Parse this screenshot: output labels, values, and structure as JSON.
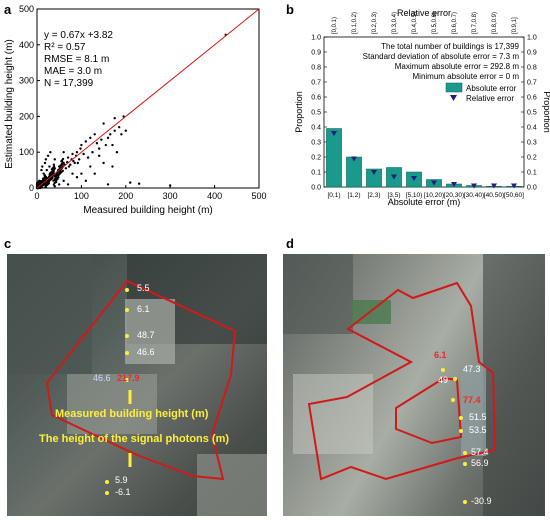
{
  "panels": {
    "a": "a",
    "b": "b",
    "c": "c",
    "d": "d"
  },
  "chart_data": [
    {
      "type": "scatter",
      "xlabel": "Measured building height (m)",
      "ylabel": "Estimated building height (m)",
      "xlim": [
        0,
        500
      ],
      "ylim": [
        0,
        500
      ],
      "xticks": [
        0,
        100,
        200,
        300,
        400,
        500
      ],
      "yticks": [
        0,
        100,
        200,
        300,
        400,
        500
      ],
      "stats": [
        "y = 0.67x +3.82",
        "R² = 0.57",
        "RMSE = 8.1 m",
        "MAE = 3.0 m",
        "N = 17,399"
      ],
      "fit_line": {
        "slope": 0.67,
        "intercept": 3.82
      },
      "identity_line": true,
      "points": [
        [
          425,
          428
        ],
        [
          300,
          7
        ],
        [
          195,
          200
        ],
        [
          175,
          195
        ],
        [
          230,
          12
        ],
        [
          160,
          10
        ],
        [
          210,
          15
        ],
        [
          150,
          180
        ],
        [
          170,
          120
        ],
        [
          190,
          150
        ],
        [
          120,
          140
        ],
        [
          130,
          150
        ],
        [
          140,
          110
        ],
        [
          100,
          120
        ],
        [
          110,
          130
        ],
        [
          90,
          100
        ],
        [
          80,
          95
        ],
        [
          85,
          70
        ],
        [
          70,
          85
        ],
        [
          60,
          70
        ],
        [
          50,
          60
        ],
        [
          45,
          40
        ],
        [
          40,
          55
        ],
        [
          35,
          30
        ],
        [
          30,
          40
        ],
        [
          25,
          22
        ],
        [
          20,
          30
        ],
        [
          15,
          18
        ],
        [
          10,
          15
        ],
        [
          8,
          12
        ],
        [
          5,
          8
        ],
        [
          12,
          60
        ],
        [
          20,
          80
        ],
        [
          18,
          70
        ],
        [
          10,
          50
        ],
        [
          25,
          90
        ],
        [
          30,
          100
        ],
        [
          15,
          40
        ],
        [
          60,
          20
        ],
        [
          90,
          30
        ],
        [
          120,
          60
        ],
        [
          140,
          90
        ],
        [
          100,
          40
        ],
        [
          80,
          40
        ],
        [
          70,
          10
        ],
        [
          50,
          10
        ],
        [
          40,
          5
        ],
        [
          110,
          20
        ],
        [
          130,
          40
        ],
        [
          150,
          70
        ],
        [
          170,
          60
        ],
        [
          180,
          100
        ],
        [
          200,
          160
        ],
        [
          160,
          140
        ],
        [
          60,
          100
        ],
        [
          40,
          80
        ],
        [
          55,
          75
        ],
        [
          65,
          55
        ],
        [
          75,
          65
        ],
        [
          95,
          80
        ],
        [
          105,
          95
        ],
        [
          115,
          85
        ],
        [
          125,
          100
        ],
        [
          135,
          125
        ],
        [
          145,
          135
        ],
        [
          155,
          120
        ],
        [
          165,
          150
        ],
        [
          175,
          160
        ],
        [
          185,
          170
        ],
        [
          22,
          50
        ],
        [
          28,
          60
        ],
        [
          33,
          45
        ],
        [
          38,
          65
        ],
        [
          42,
          35
        ],
        [
          48,
          50
        ],
        [
          52,
          45
        ],
        [
          58,
          48
        ],
        [
          62,
          65
        ],
        [
          68,
          72
        ],
        [
          72,
          60
        ],
        [
          78,
          80
        ],
        [
          82,
          75
        ],
        [
          88,
          90
        ],
        [
          92,
          70
        ],
        [
          98,
          110
        ]
      ],
      "colors": {
        "points": "#000000",
        "fit": "#e41a1c"
      }
    },
    {
      "type": "bar",
      "xlabel": "Absolute error (m)",
      "ylabel": "Proportion",
      "ylabel_right": "Proportion",
      "top_xlabel": "Relative error",
      "ylim": [
        0,
        1.0
      ],
      "yticks": [
        "0.0",
        "0.1",
        "0.2",
        "0.3",
        "0.4",
        "0.5",
        "0.6",
        "0.7",
        "0.8",
        "0.9",
        "1.0"
      ],
      "categories": [
        "[0,1)",
        "[1,2)",
        "[2,3)",
        "[3,5)",
        "[5,10)",
        "[10,20)",
        "[20,30)",
        "[30,40)",
        "[40,50)",
        "[50,60]"
      ],
      "top_categories": [
        "[0,0.1)",
        "[0.1,0.2)",
        "[0.2,0.3)",
        "[0.3,0.4)",
        "[0.4,0.5)",
        "[0.5,0.6)",
        "[0.6,0.7)",
        "[0.7,0.8)",
        "[0.8,0.9)",
        "[0.9,1]"
      ],
      "series": [
        {
          "name": "Absolute error",
          "values": [
            0.39,
            0.2,
            0.12,
            0.13,
            0.1,
            0.05,
            0.02,
            0.01,
            0.005,
            0.005
          ]
        },
        {
          "name": "Relative error",
          "values": [
            0.36,
            0.19,
            0.1,
            0.07,
            0.06,
            0.03,
            0.02,
            0.01,
            0.01,
            0.01
          ]
        }
      ],
      "annotations": [
        "The total number of buildings is 17,399",
        "Standard deviation of absolute error = 7.3 m",
        "Maximum absolute error = 292.8 m",
        "Minimum absolute error = 0 m"
      ],
      "colors": {
        "bar": "#1a9a8c",
        "marker": "#2b1a7a"
      }
    }
  ],
  "photo_c": {
    "labels": [
      "5.5",
      "6.1",
      "48.7",
      "46.6",
      "46.6",
      "217.9",
      "5.9",
      "-6.1"
    ],
    "caption1": "Measured building height (m)",
    "caption2": "The height of the signal photons (m)"
  },
  "photo_d": {
    "labels": [
      "6.1",
      "47.3",
      "49",
      "77.4",
      "51.5",
      "53.5",
      "57.4",
      "56.9",
      "-30.9"
    ]
  }
}
